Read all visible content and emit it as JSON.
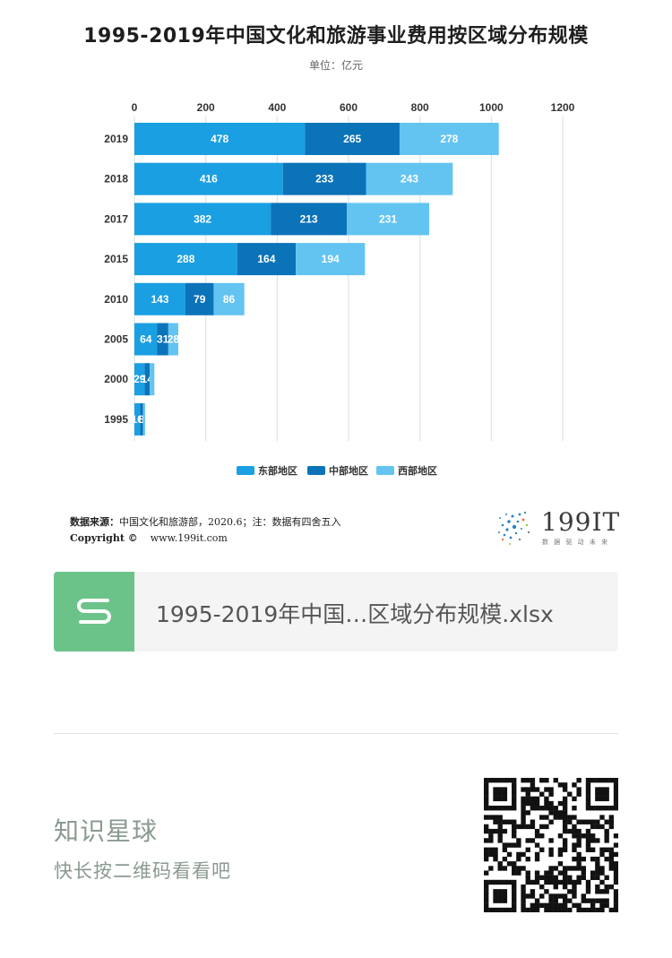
{
  "title": "1995-2019年中国文化和旅游事业费用按区域分布规模",
  "unit": "单位：亿元",
  "chart_data": {
    "type": "bar",
    "orientation": "horizontal",
    "stacked": true,
    "categories": [
      "2019",
      "2018",
      "2017",
      "2015",
      "2010",
      "2005",
      "2000",
      "1995"
    ],
    "series": [
      {
        "name": "东部地区",
        "values": [
          478,
          416,
          382,
          288,
          143,
          64,
          29,
          16
        ],
        "labels": [
          "478",
          "416",
          "382",
          "288",
          "143",
          "64",
          "29",
          "16"
        ],
        "color": "#1a9fe2"
      },
      {
        "name": "中部地区",
        "values": [
          265,
          233,
          213,
          164,
          79,
          31,
          14,
          8
        ],
        "labels": [
          "265",
          "233",
          "213",
          "164",
          "79",
          "31",
          "14",
          "8"
        ],
        "color": "#0b73b8"
      },
      {
        "name": "西部地区",
        "values": [
          278,
          243,
          231,
          194,
          86,
          28,
          13,
          6
        ],
        "labels": [
          "278",
          "243",
          "231",
          "194",
          "86",
          "28",
          "",
          ""
        ],
        "color": "#63c4f2"
      }
    ],
    "x_ticks": [
      "0",
      "200",
      "400",
      "600",
      "800",
      "1000",
      "1200"
    ],
    "xlim": [
      0,
      1200
    ],
    "grid": true,
    "legend": "bottom"
  },
  "footer": {
    "source_label": "数据来源：",
    "source_text": "中国文化和旅游部，2020.6；注：数据有四舍五入",
    "copyright_label": "Copyright ©",
    "website": "www.199it.com",
    "brand": "199IT",
    "brand_tagline": "数 据 驱 动 未 来"
  },
  "attachment": {
    "file_name": "1995-2019年中国…区域分布规模.xlsx",
    "icon": "spreadsheet-s-icon"
  },
  "planet": {
    "title": "知识星球",
    "subtitle": "快长按二维码看看吧"
  },
  "colors": {
    "east": "#1a9fe2",
    "central": "#0b73b8",
    "west": "#63c4f2",
    "card_icon": "#6cc38a"
  }
}
